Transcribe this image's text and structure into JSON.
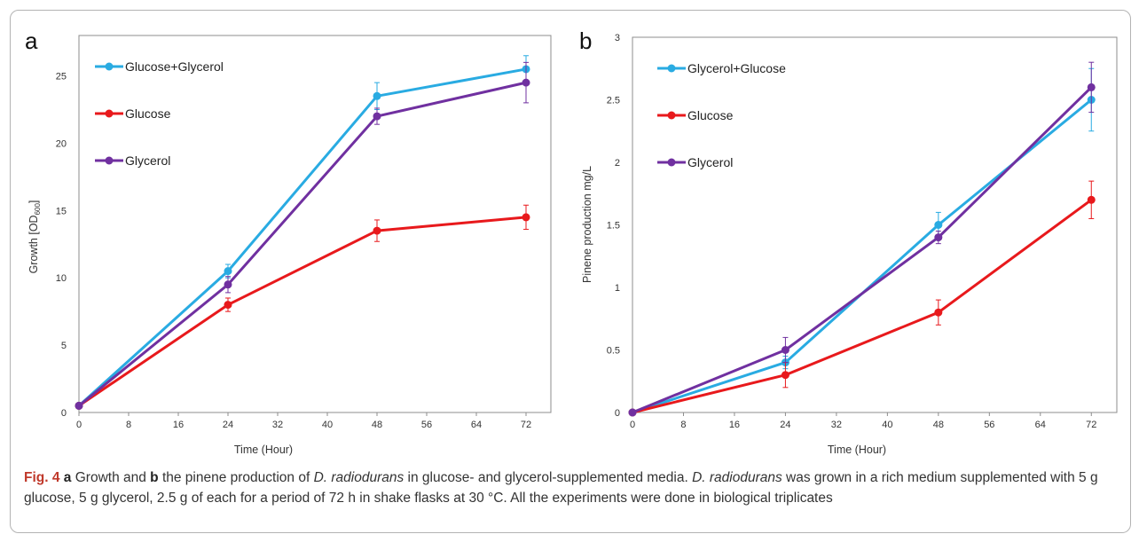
{
  "colors": {
    "blue": "#29ABE2",
    "red": "#E8191C",
    "purple": "#7030A0"
  },
  "chart_data": [
    {
      "type": "line",
      "panel": "a",
      "xlabel": "Time (Hour)",
      "ylabel": "Growth [OD600]",
      "ylabel_main": "Growth [OD",
      "ylabel_sub": "600",
      "ylabel_end": "]",
      "xlim": [
        0,
        76
      ],
      "ylim": [
        0,
        28
      ],
      "x_ticks": [
        0,
        8,
        16,
        24,
        32,
        40,
        48,
        56,
        64,
        72
      ],
      "y_ticks": [
        0,
        5,
        10,
        15,
        20,
        25
      ],
      "legend_position": "top-left",
      "series": [
        {
          "name": "Glucose+Glycerol",
          "color": "#29ABE2",
          "x": [
            0,
            24,
            48,
            72
          ],
          "y": [
            0.5,
            10.5,
            23.5,
            25.5
          ],
          "err": [
            0,
            0.5,
            1.0,
            1.0
          ]
        },
        {
          "name": "Glucose",
          "color": "#E8191C",
          "x": [
            0,
            24,
            48,
            72
          ],
          "y": [
            0.5,
            8.0,
            13.5,
            14.5
          ],
          "err": [
            0,
            0.5,
            0.8,
            0.9
          ]
        },
        {
          "name": "Glycerol",
          "color": "#7030A0",
          "x": [
            0,
            24,
            48,
            72
          ],
          "y": [
            0.5,
            9.5,
            22.0,
            24.5
          ],
          "err": [
            0,
            0.6,
            0.6,
            1.5
          ]
        }
      ]
    },
    {
      "type": "line",
      "panel": "b",
      "xlabel": "Time (Hour)",
      "ylabel": "Pinene production mg/L",
      "xlim": [
        0,
        76
      ],
      "ylim": [
        0,
        3
      ],
      "x_ticks": [
        0,
        8,
        16,
        24,
        32,
        40,
        48,
        56,
        64,
        72
      ],
      "y_ticks": [
        0,
        0.5,
        1,
        1.5,
        2,
        2.5,
        3
      ],
      "legend_position": "top-left",
      "series": [
        {
          "name": "Glycerol+Glucose",
          "color": "#29ABE2",
          "x": [
            0,
            24,
            48,
            72
          ],
          "y": [
            0,
            0.4,
            1.5,
            2.5
          ],
          "err": [
            0,
            0.05,
            0.1,
            0.25
          ]
        },
        {
          "name": "Glucose",
          "color": "#E8191C",
          "x": [
            0,
            24,
            48,
            72
          ],
          "y": [
            0,
            0.3,
            0.8,
            1.7
          ],
          "err": [
            0,
            0.1,
            0.1,
            0.15
          ]
        },
        {
          "name": "Glycerol",
          "color": "#7030A0",
          "x": [
            0,
            24,
            48,
            72
          ],
          "y": [
            0,
            0.5,
            1.4,
            2.6
          ],
          "err": [
            0,
            0.1,
            0.05,
            0.2
          ]
        }
      ]
    }
  ],
  "caption": {
    "fig_label": "Fig. 4",
    "a": "a",
    "t1": " Growth and ",
    "b": "b",
    "t2": " the pinene production of ",
    "species1": "D. radiodurans",
    "t3": " in glucose- and glycerol-supplemented media. ",
    "species2": "D. radiodurans",
    "t4": " was grown in a rich medium supplemented with 5 g glucose, 5 g glycerol, 2.5 g of each for a period of 72 h in shake flasks at 30 °C. All the experiments were done in biological triplicates"
  }
}
